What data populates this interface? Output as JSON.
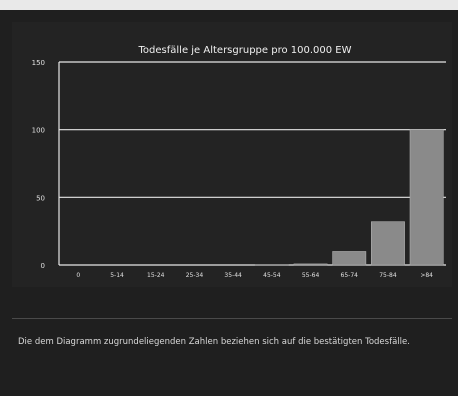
{
  "chart_data": {
    "type": "bar",
    "title": "Todesfälle je Altersgruppe pro 100.000 EW",
    "categories": [
      "0",
      "5-14",
      "15-24",
      "25-34",
      "35-44",
      "45-54",
      "55-64",
      "65-74",
      "75-84",
      ">84"
    ],
    "values": [
      0,
      0,
      0,
      0,
      0,
      0.2,
      0.8,
      10,
      32,
      100
    ],
    "ylim": [
      0,
      150
    ],
    "yticks": [
      "0",
      "50",
      "100",
      "150"
    ],
    "grid": true,
    "colors": {
      "bar": "#8a8a8a",
      "bar_stroke": "#b0b0b0",
      "grid": "#e6e6e6",
      "axis": "#e6e6e6"
    }
  },
  "footer_note": "Die dem Diagramm zugrundeliegenden Zahlen beziehen sich auf die bestätigten Todesfälle."
}
